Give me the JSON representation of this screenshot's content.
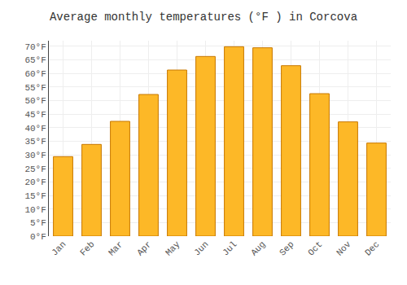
{
  "chart_data": {
    "type": "bar",
    "title": "Average monthly temperatures (°F ) in Corcova",
    "categories": [
      "Jan",
      "Feb",
      "Mar",
      "Apr",
      "May",
      "Jun",
      "Jul",
      "Aug",
      "Sep",
      "Oct",
      "Nov",
      "Dec"
    ],
    "values": [
      29.3,
      33.8,
      42.3,
      52.2,
      61.2,
      66.2,
      69.8,
      69.4,
      62.8,
      52.5,
      42.1,
      34.3
    ],
    "color": "#FDB827",
    "ylim": [
      0,
      72
    ],
    "yticks": [
      {
        "value": 0,
        "label": "0°F"
      },
      {
        "value": 5,
        "label": "5°F"
      },
      {
        "value": 10,
        "label": "10°F"
      },
      {
        "value": 15,
        "label": "15°F"
      },
      {
        "value": 20,
        "label": "20°F"
      },
      {
        "value": 25,
        "label": "25°F"
      },
      {
        "value": 30,
        "label": "30°F"
      },
      {
        "value": 35,
        "label": "35°F"
      },
      {
        "value": 40,
        "label": "40°F"
      },
      {
        "value": 45,
        "label": "45°F"
      },
      {
        "value": 50,
        "label": "50°F"
      },
      {
        "value": 55,
        "label": "55°F"
      },
      {
        "value": 60,
        "label": "60°F"
      },
      {
        "value": 65,
        "label": "65°F"
      },
      {
        "value": 70,
        "label": "70°F"
      }
    ],
    "grid": true
  }
}
